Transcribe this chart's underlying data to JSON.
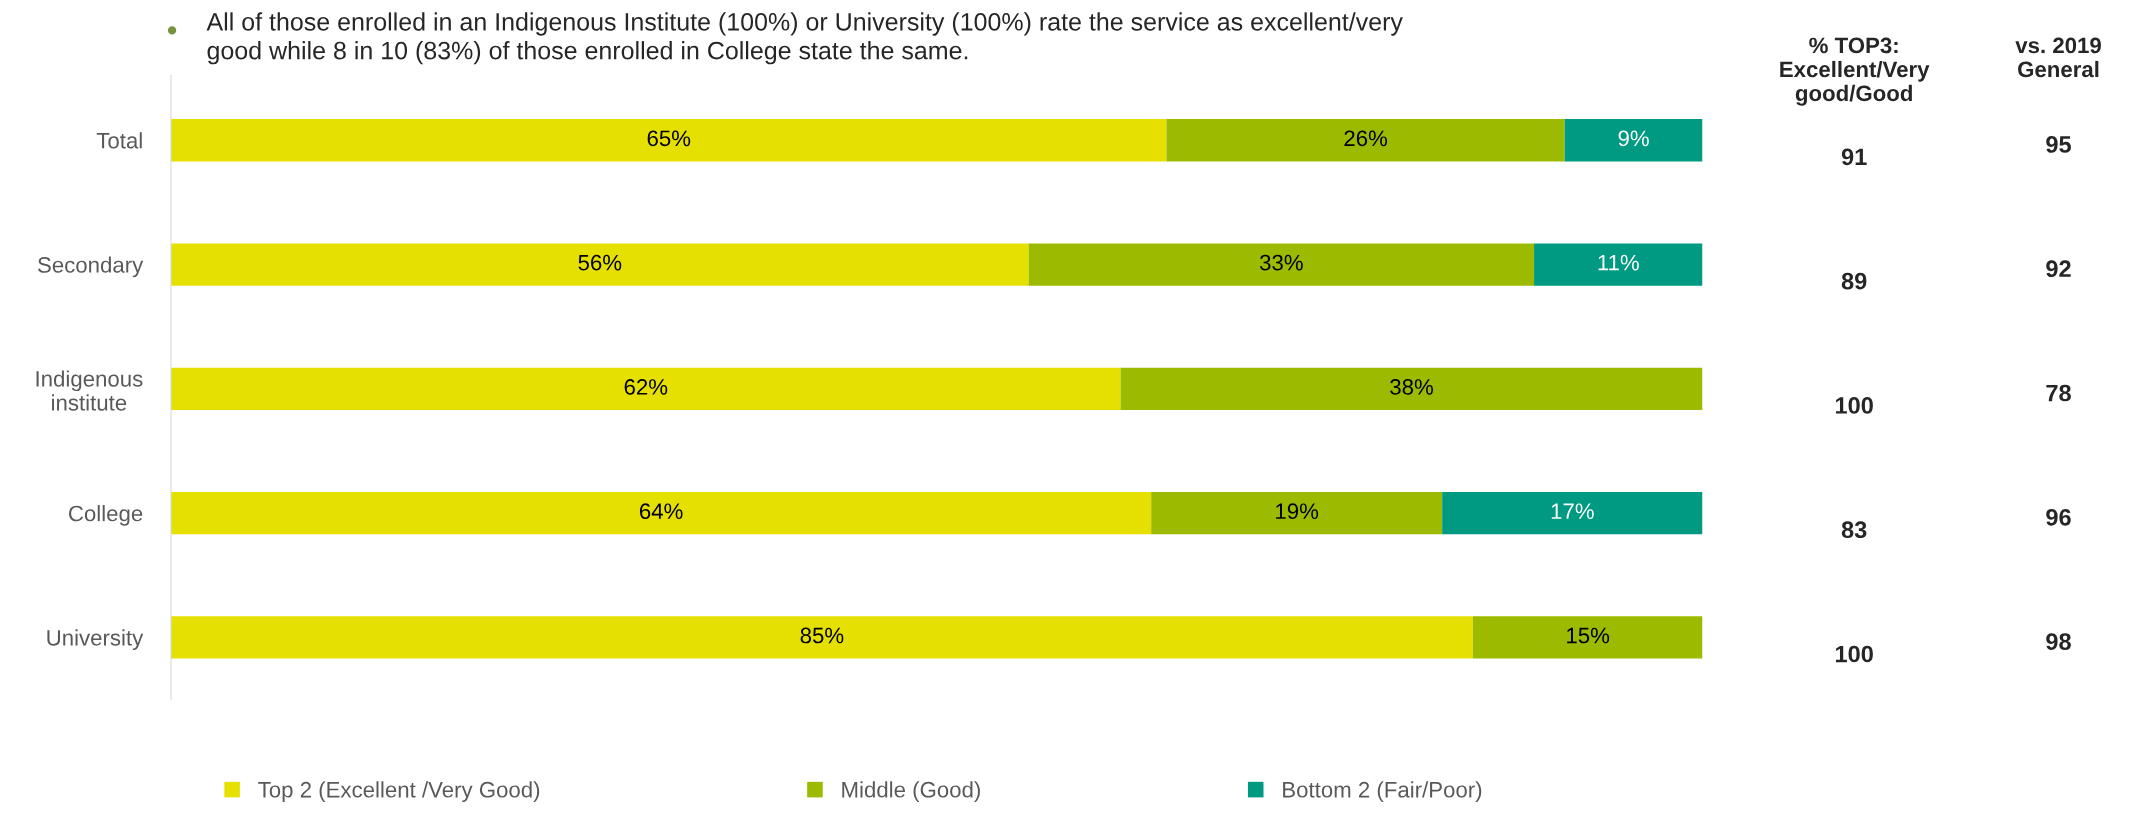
{
  "chart_data": {
    "type": "bar",
    "orientation": "horizontal",
    "stacked": true,
    "tick_labels": "y",
    "legend": "bottom",
    "grid": false,
    "categories": [
      "Total",
      "Secondary",
      "Indigenous\ninstitute",
      "College",
      "University"
    ],
    "xlim": [
      0,
      100
    ],
    "series": [
      {
        "name": "Top 2 (Excellent /Very Good)",
        "color": "#e6e000",
        "values": [
          65,
          56,
          62,
          64,
          85
        ],
        "value_labels": [
          "65%",
          "56%",
          "62%",
          "64%",
          "85%"
        ]
      },
      {
        "name": "Middle (Good)",
        "color": "#9cbb00",
        "values": [
          26,
          33,
          38,
          19,
          15
        ],
        "value_labels": [
          "26%",
          "33%",
          "38%",
          "19%",
          "15%"
        ]
      },
      {
        "name": "Bottom 2 (Fair/Poor)",
        "color": "#009a82",
        "values": [
          9,
          11,
          0,
          17,
          0
        ],
        "value_labels": [
          "9%",
          "11%",
          null,
          "17%",
          null
        ]
      }
    ],
    "annotations": [
      "All of those enrolled in an Indigenous Institute (100%) or University (100%) rate the service as excellent/very\ngood while 8 in 10 (83%) of those enrolled in College state the same.",
      "% TOP3:\nExcellent/Very\ngood/Good",
      "vs. 2019\nGeneral",
      "91",
      "89",
      "100",
      "83",
      "100",
      "95",
      "92",
      "78",
      "96",
      "98"
    ]
  }
}
